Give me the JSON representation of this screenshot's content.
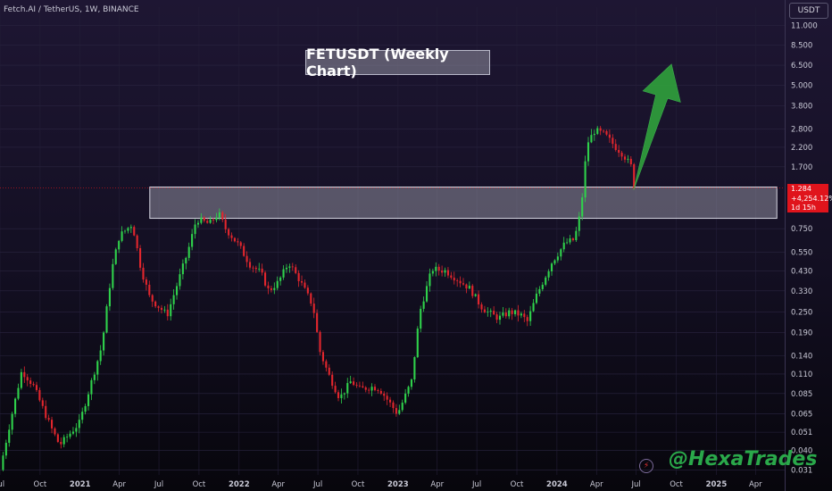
{
  "header": {
    "symbol_info": "Fetch.AI / TetherUS, 1W, BINANCE"
  },
  "chart_title": "FETUSDT (Weekly Chart)",
  "currency": "USDT",
  "last_price": {
    "price": "1.284",
    "change": "+4,254.12%",
    "countdown": "1d 15h",
    "color": "#e0141c"
  },
  "watermark": "@HexaTrades",
  "colors": {
    "up": "#2fd14b",
    "down": "#e1262d",
    "zone": "#a9a9b8",
    "arrow": "#2f9e3c"
  },
  "chart_data": {
    "type": "candlestick",
    "y_scale": "log",
    "ylim": [
      0.029,
      14
    ],
    "xlim": [
      "2020-07-01",
      "2025-06-07"
    ],
    "y_ticks": [
      "11.000",
      "8.500",
      "6.500",
      "5.000",
      "3.800",
      "2.800",
      "2.200",
      "1.700",
      "0.750",
      "0.550",
      "0.430",
      "0.330",
      "0.250",
      "0.190",
      "0.140",
      "0.110",
      "0.085",
      "0.065",
      "0.051",
      "0.040",
      "0.031"
    ],
    "x_ticks": [
      {
        "label": "Jul",
        "date": "2020-07-01"
      },
      {
        "label": "Oct",
        "date": "2020-10-01"
      },
      {
        "label": "2021",
        "date": "2021-01-01"
      },
      {
        "label": "Apr",
        "date": "2021-04-01"
      },
      {
        "label": "Jul",
        "date": "2021-07-01"
      },
      {
        "label": "Oct",
        "date": "2021-10-01"
      },
      {
        "label": "2022",
        "date": "2022-01-01"
      },
      {
        "label": "Apr",
        "date": "2022-04-01"
      },
      {
        "label": "Jul",
        "date": "2022-07-01"
      },
      {
        "label": "Oct",
        "date": "2022-10-01"
      },
      {
        "label": "2023",
        "date": "2023-01-01"
      },
      {
        "label": "Apr",
        "date": "2023-04-01"
      },
      {
        "label": "Jul",
        "date": "2023-07-01"
      },
      {
        "label": "Oct",
        "date": "2023-10-01"
      },
      {
        "label": "2024",
        "date": "2024-01-01"
      },
      {
        "label": "Apr",
        "date": "2024-04-01"
      },
      {
        "label": "Jul",
        "date": "2024-07-01"
      },
      {
        "label": "Oct",
        "date": "2024-10-01"
      },
      {
        "label": "2025",
        "date": "2025-01-01"
      },
      {
        "label": "Apr",
        "date": "2025-04-01"
      }
    ],
    "path_dates": [
      "2020-07-01",
      "2020-07-20",
      "2020-08-20",
      "2020-09-15",
      "2020-10-25",
      "2020-11-15",
      "2020-12-31",
      "2021-02-20",
      "2021-03-15",
      "2021-04-01",
      "2021-05-01",
      "2021-05-20",
      "2021-06-10",
      "2021-07-20",
      "2021-08-15",
      "2021-09-05",
      "2021-09-25",
      "2021-10-25",
      "2021-11-15",
      "2021-12-01",
      "2022-01-01",
      "2022-01-25",
      "2022-02-20",
      "2022-03-10",
      "2022-04-01",
      "2022-04-25",
      "2022-05-20",
      "2022-06-20",
      "2022-07-05",
      "2022-07-25",
      "2022-08-20",
      "2022-09-15",
      "2022-10-05",
      "2022-11-05",
      "2022-11-20",
      "2022-12-31",
      "2023-02-01",
      "2023-02-20",
      "2023-03-20",
      "2023-04-20",
      "2023-05-20",
      "2023-06-15",
      "2023-07-10",
      "2023-07-25",
      "2023-08-20",
      "2023-09-15",
      "2023-10-10",
      "2023-10-25",
      "2023-11-15",
      "2023-12-20",
      "2024-01-20",
      "2024-02-10",
      "2024-02-25",
      "2024-03-10",
      "2024-03-28",
      "2024-04-20",
      "2024-05-15",
      "2024-06-01",
      "2024-06-20",
      "2024-07-01"
    ],
    "path_prices": [
      0.031,
      0.052,
      0.115,
      0.095,
      0.055,
      0.043,
      0.058,
      0.16,
      0.44,
      0.68,
      0.8,
      0.45,
      0.3,
      0.24,
      0.38,
      0.55,
      0.85,
      0.8,
      0.92,
      0.75,
      0.6,
      0.47,
      0.42,
      0.33,
      0.37,
      0.48,
      0.38,
      0.27,
      0.15,
      0.11,
      0.08,
      0.1,
      0.09,
      0.093,
      0.09,
      0.065,
      0.1,
      0.25,
      0.44,
      0.43,
      0.38,
      0.34,
      0.27,
      0.25,
      0.23,
      0.25,
      0.24,
      0.22,
      0.31,
      0.48,
      0.62,
      0.65,
      0.95,
      2.3,
      2.75,
      2.6,
      2.2,
      2.0,
      1.7,
      1.284
    ],
    "zone": {
      "low": 0.86,
      "high": 1.3,
      "start": "2021-06-10",
      "end": "2025-05-20"
    },
    "arrow": {
      "from_date": "2024-06-25",
      "from_price": 1.25,
      "to_date": "2024-09-20",
      "to_price": 6.6
    },
    "current_price": 1.284
  }
}
